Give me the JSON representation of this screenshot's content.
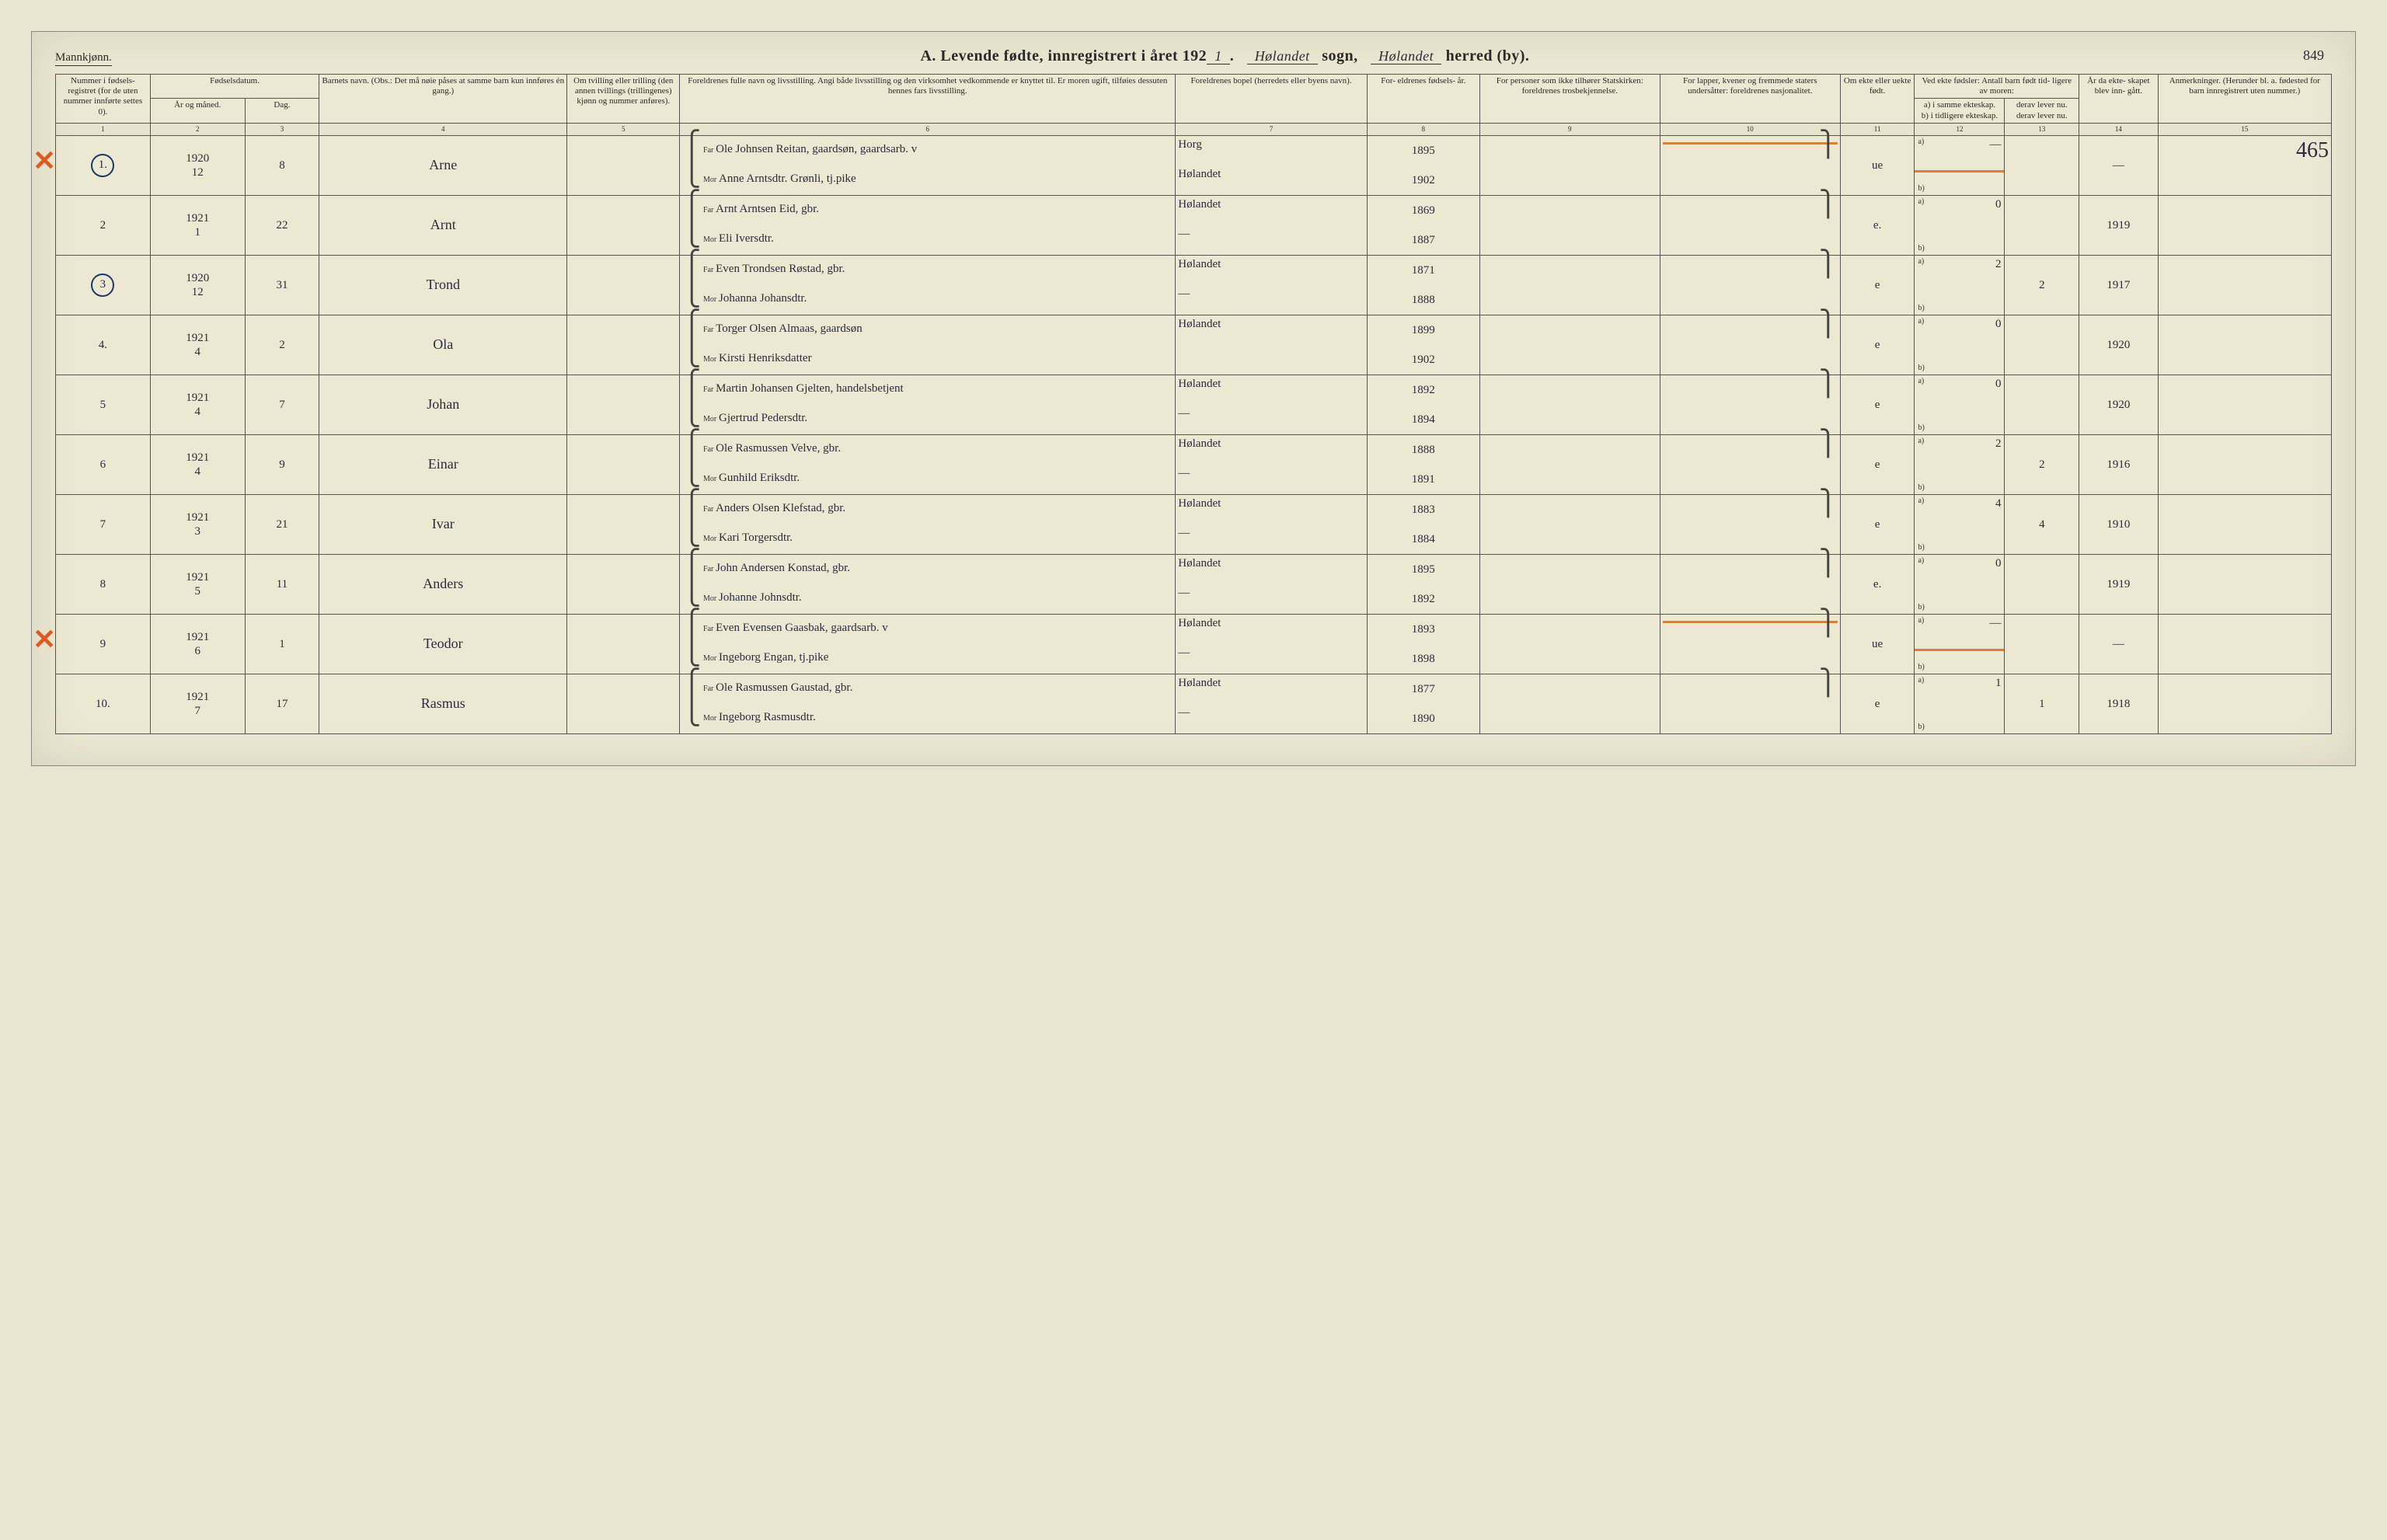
{
  "header": {
    "gender": "Mannkjønn.",
    "title_prefix": "A.  Levende fødte, innregistrert i året 192",
    "year_suffix": "1",
    "sogn_hw": "Hølandet",
    "sogn_label": "sogn,",
    "herred_hw": "Hølandet",
    "herred_label": "herred (by).",
    "page_number": "849"
  },
  "columns": {
    "c1": "Nummer i fødsels- registret (for de uten nummer innførte settes 0).",
    "c2_top": "Fødselsdatum.",
    "c2a": "År og måned.",
    "c2b": "Dag.",
    "c4": "Barnets navn.\n(Obs.: Det må nøie påses at samme barn kun innføres én gang.)",
    "c5": "Om tvilling eller trilling (den annen tvillings (trillingenes) kjønn og nummer anføres).",
    "c6": "Foreldrenes fulle navn og livsstilling.\nAngi både livsstilling og den virksomhet vedkommende er knyttet til.  Er moren ugift, tilføies dessuten hennes fars livsstilling.",
    "c7": "Foreldrenes bopel (herredets eller byens navn).",
    "c8": "For- eldrenes fødsels- år.",
    "c9": "For personer som ikke tilhører Statskirken: foreldrenes trosbekjennelse.",
    "c10": "For lapper, kvener og fremmede staters undersåtter: foreldrenes nasjonalitet.",
    "c11": "Om ekte eller uekte født.",
    "c12_top": "Ved ekte fødsler:\nAntall barn født tid- ligere av moren:",
    "c12a": "a) i samme ekteskap.",
    "c12b": "b) i tidligere ekteskap.",
    "c13a": "derav lever nu.",
    "c13b": "derav lever nu.",
    "c14": "År da ekte- skapet blev inn- gått.",
    "c15": "Anmerkninger.\n(Herunder bl. a. fødested for barn innregistrert uten nummer.)"
  },
  "colnums": [
    "1",
    "2",
    "3",
    "4",
    "5",
    "6",
    "7",
    "8",
    "9",
    "10",
    "11",
    "12",
    "13",
    "14",
    "15"
  ],
  "labels": {
    "far": "Far",
    "mor": "Mor",
    "a": "a)",
    "b": "b)"
  },
  "rows": [
    {
      "redx": true,
      "circled": true,
      "num": "1.",
      "year": "1920",
      "month": "12",
      "day": "8",
      "name": "Arne",
      "far": "Ole Johnsen Reitan, gaardsøn, gaardsarb. v",
      "mor": "Anne Arntsdtr. Grønli, tj.pike",
      "bopel_f": "Horg",
      "bopel_m": "Hølandet",
      "fy_f": "1895",
      "fy_m": "1902",
      "ekte": "ue",
      "a": "—",
      "a2": "",
      "year_m": "—",
      "orange": true,
      "remark": "465"
    },
    {
      "num": "2",
      "year": "1921",
      "month": "1",
      "day": "22",
      "name": "Arnt",
      "far": "Arnt Arntsen Eid, gbr.",
      "mor": "Eli Iversdtr.",
      "bopel_f": "Hølandet",
      "bopel_m": "—",
      "fy_f": "1869",
      "fy_m": "1887",
      "ekte": "e.",
      "a": "0",
      "a2": "",
      "year_m": "1919"
    },
    {
      "circled": true,
      "num": "3",
      "year": "1920",
      "month": "12",
      "day": "31",
      "name": "Trond",
      "far": "Even Trondsen Røstad, gbr.",
      "mor": "Johanna Johansdtr.",
      "bopel_f": "Hølandet",
      "bopel_m": "—",
      "fy_f": "1871",
      "fy_m": "1888",
      "ekte": "e",
      "a": "2",
      "a2": "2",
      "year_m": "1917"
    },
    {
      "num": "4.",
      "year": "1921",
      "month": "4",
      "day": "2",
      "name": "Ola",
      "far": "Torger Olsen Almaas, gaardsøn",
      "mor": "Kirsti Henriksdatter",
      "bopel_f": "Hølandet",
      "bopel_m": "",
      "fy_f": "1899",
      "fy_m": "1902",
      "ekte": "e",
      "a": "0",
      "a2": "",
      "year_m": "1920"
    },
    {
      "num": "5",
      "year": "1921",
      "month": "4",
      "day": "7",
      "name": "Johan",
      "far": "Martin Johansen Gjelten, handelsbetjent",
      "mor": "Gjertrud Pedersdtr.",
      "bopel_f": "Hølandet",
      "bopel_m": "—",
      "fy_f": "1892",
      "fy_m": "1894",
      "ekte": "e",
      "a": "0",
      "a2": "",
      "year_m": "1920"
    },
    {
      "num": "6",
      "year": "1921",
      "month": "4",
      "day": "9",
      "name": "Einar",
      "far": "Ole Rasmussen Velve, gbr.",
      "mor": "Gunhild Eriksdtr.",
      "bopel_f": "Hølandet",
      "bopel_m": "—",
      "fy_f": "1888",
      "fy_m": "1891",
      "ekte": "e",
      "a": "2",
      "a2": "2",
      "year_m": "1916"
    },
    {
      "num": "7",
      "year": "1921",
      "month": "3",
      "day": "21",
      "name": "Ivar",
      "far": "Anders Olsen Klefstad, gbr.",
      "mor": "Kari Torgersdtr.",
      "bopel_f": "Hølandet",
      "bopel_m": "—",
      "fy_f": "1883",
      "fy_m": "1884",
      "ekte": "e",
      "a": "4",
      "a2": "4",
      "year_m": "1910"
    },
    {
      "num": "8",
      "year": "1921",
      "month": "5",
      "day": "11",
      "name": "Anders",
      "far": "John Andersen Konstad, gbr.",
      "mor": "Johanne Johnsdtr.",
      "bopel_f": "Hølandet",
      "bopel_m": "—",
      "fy_f": "1895",
      "fy_m": "1892",
      "ekte": "e.",
      "a": "0",
      "a2": "",
      "year_m": "1919"
    },
    {
      "redx": true,
      "num": "9",
      "year": "1921",
      "month": "6",
      "day": "1",
      "name": "Teodor",
      "far": "Even Evensen Gaasbak, gaardsarb. v",
      "mor": "Ingeborg Engan, tj.pike",
      "bopel_f": "Hølandet",
      "bopel_m": "—",
      "fy_f": "1893",
      "fy_m": "1898",
      "ekte": "ue",
      "a": "—",
      "a2": "",
      "year_m": "—",
      "orange": true
    },
    {
      "num": "10.",
      "year": "1921",
      "month": "7",
      "day": "17",
      "name": "Rasmus",
      "far": "Ole Rasmussen Gaustad, gbr.",
      "mor": "Ingeborg Rasmusdtr.",
      "bopel_f": "Hølandet",
      "bopel_m": "—",
      "fy_f": "1877",
      "fy_m": "1890",
      "ekte": "e",
      "a": "1",
      "a2": "1",
      "year_m": "1918"
    }
  ],
  "style": {
    "paper": "#ece8d2",
    "ink": "#2a2a2a",
    "hw_ink": "#2b2b40",
    "red": "#e05a20",
    "orange": "#e67a30",
    "blue": "#1a3a6a",
    "border": "#555",
    "font_print": "Georgia, 'Times New Roman', serif",
    "font_hw": "'Brush Script MT', cursive"
  },
  "col_widths_pct": [
    4.2,
    4.2,
    3.3,
    11,
    5,
    22,
    8.5,
    5,
    8,
    8,
    3.3,
    4,
    3.3,
    3.5,
    7.7
  ]
}
